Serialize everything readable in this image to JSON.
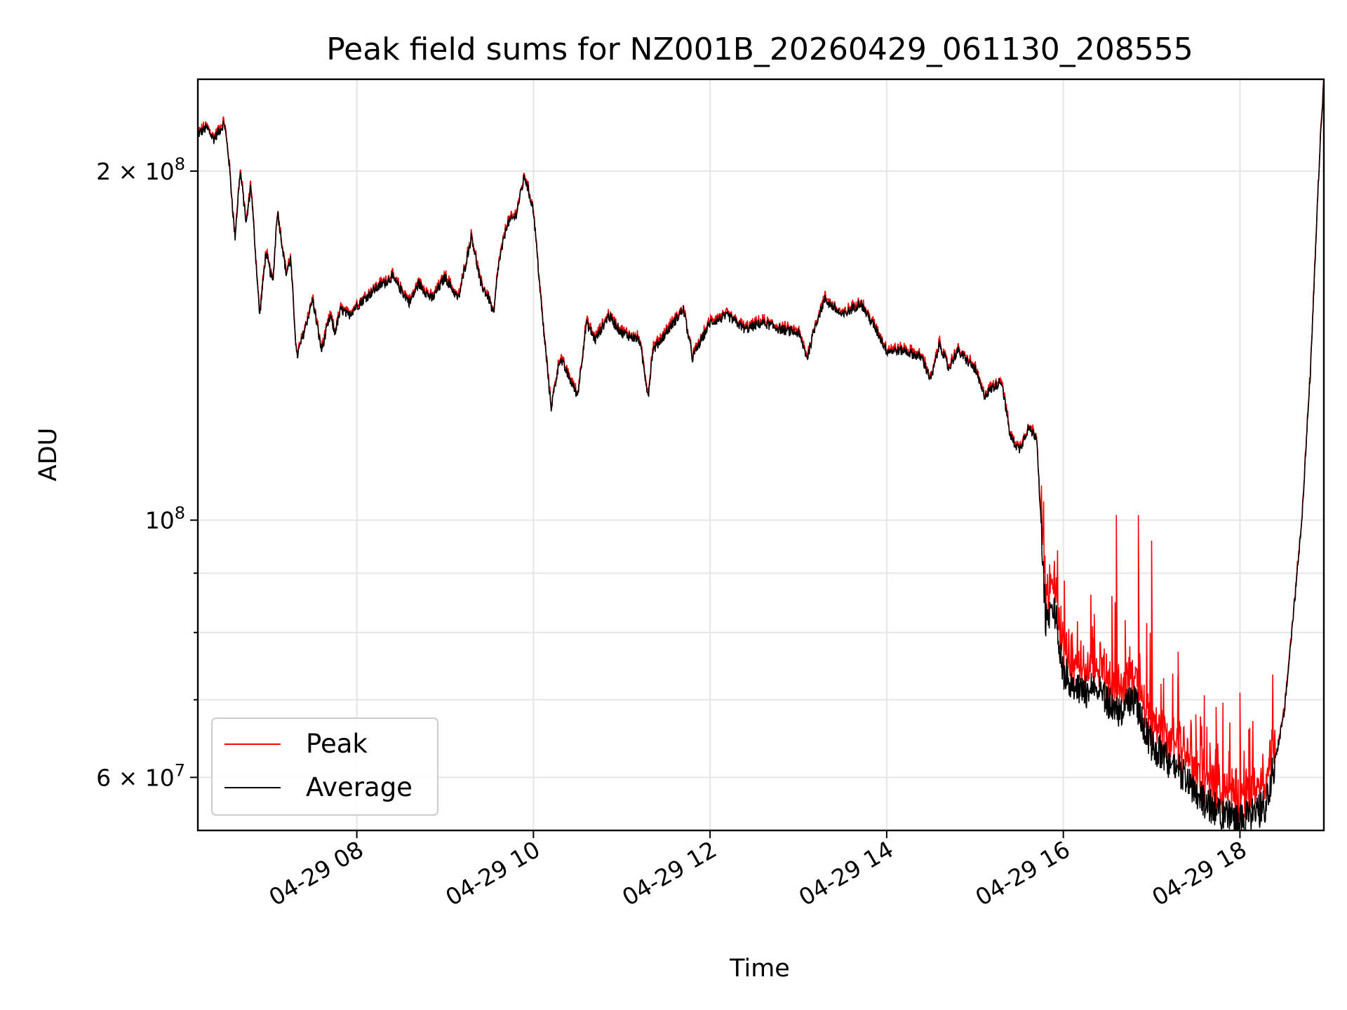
{
  "chart_data": {
    "type": "line",
    "title": "Peak field sums for NZ001B_20260429_061130_208555",
    "xlabel": "Time",
    "ylabel": "ADU",
    "yscale": "log",
    "xlim_hours": [
      6.2,
      18.95
    ],
    "ylim": [
      54000000,
      240000000
    ],
    "grid": true,
    "legend_location": "lower left",
    "x_ticks": [
      {
        "hour": 8,
        "label": "04-29 08"
      },
      {
        "hour": 10,
        "label": "04-29 10"
      },
      {
        "hour": 12,
        "label": "04-29 12"
      },
      {
        "hour": 14,
        "label": "04-29 14"
      },
      {
        "hour": 16,
        "label": "04-29 16"
      },
      {
        "hour": 18,
        "label": "04-29 18"
      }
    ],
    "y_major_ticks": [
      {
        "value": 200000000,
        "label": "2 × 10^8",
        "mantissa": "2 × 10",
        "exponent": "8"
      },
      {
        "value": 100000000,
        "label": "10^8",
        "mantissa": "10",
        "exponent": "8"
      },
      {
        "value": 60000000,
        "label": "6 × 10^7",
        "mantissa": "6 × 10",
        "exponent": "7"
      }
    ],
    "y_minor_ticks": [
      70000000,
      80000000,
      90000000
    ],
    "series": [
      {
        "name": "Peak",
        "color": "#ff0000",
        "spikes": [
          {
            "hour": 16.1,
            "value": 80000000
          },
          {
            "hour": 16.35,
            "value": 83000000
          },
          {
            "hour": 16.55,
            "value": 86000000
          },
          {
            "hour": 16.6,
            "value": 101000000
          },
          {
            "hour": 16.7,
            "value": 82000000
          },
          {
            "hour": 16.85,
            "value": 101000000
          },
          {
            "hour": 17.0,
            "value": 96000000
          },
          {
            "hour": 17.3,
            "value": 77000000
          },
          {
            "hour": 17.5,
            "value": 68000000
          },
          {
            "hour": 17.73,
            "value": 69000000
          },
          {
            "hour": 18.0,
            "value": 71000000
          },
          {
            "hour": 18.1,
            "value": 66000000
          }
        ]
      },
      {
        "name": "Average",
        "color": "#000000",
        "x_hours": [
          6.2,
          6.3,
          6.38,
          6.5,
          6.55,
          6.62,
          6.68,
          6.75,
          6.8,
          6.9,
          6.97,
          7.05,
          7.1,
          7.2,
          7.25,
          7.32,
          7.4,
          7.5,
          7.6,
          7.7,
          7.75,
          7.82,
          7.9,
          8.0,
          8.2,
          8.4,
          8.6,
          8.7,
          8.85,
          9.0,
          9.15,
          9.3,
          9.4,
          9.5,
          9.55,
          9.6,
          9.7,
          9.8,
          9.9,
          10.0,
          10.1,
          10.2,
          10.3,
          10.5,
          10.6,
          10.7,
          10.85,
          11.0,
          11.2,
          11.3,
          11.35,
          11.5,
          11.7,
          11.8,
          12.0,
          12.2,
          12.4,
          12.6,
          12.8,
          13.0,
          13.1,
          13.2,
          13.3,
          13.5,
          13.7,
          13.9,
          14.0,
          14.2,
          14.4,
          14.5,
          14.6,
          14.7,
          14.8,
          15.0,
          15.1,
          15.3,
          15.4,
          15.5,
          15.6,
          15.7,
          15.8,
          15.9,
          16.0,
          16.2,
          16.4,
          16.6,
          16.8,
          17.0,
          17.2,
          17.4,
          17.6,
          17.8,
          18.0,
          18.2,
          18.3,
          18.5,
          18.6,
          18.7,
          18.8,
          18.9,
          18.95
        ],
        "values": [
          215000000,
          218000000,
          213000000,
          220000000,
          205000000,
          175000000,
          200000000,
          180000000,
          195000000,
          150000000,
          170000000,
          160000000,
          185000000,
          163000000,
          168000000,
          138000000,
          145000000,
          155000000,
          140000000,
          150000000,
          145000000,
          152000000,
          150000000,
          153000000,
          158000000,
          162000000,
          154000000,
          160000000,
          155000000,
          162000000,
          155000000,
          176000000,
          160000000,
          155000000,
          150000000,
          165000000,
          180000000,
          183000000,
          198000000,
          185000000,
          150000000,
          125000000,
          138000000,
          128000000,
          148000000,
          143000000,
          150000000,
          145000000,
          143000000,
          128000000,
          140000000,
          145000000,
          152000000,
          138000000,
          148000000,
          150000000,
          146000000,
          148000000,
          146000000,
          145000000,
          138000000,
          148000000,
          155000000,
          150000000,
          154000000,
          145000000,
          140000000,
          140000000,
          138000000,
          132000000,
          142000000,
          135000000,
          140000000,
          135000000,
          128000000,
          132000000,
          118000000,
          115000000,
          120000000,
          118000000,
          82000000,
          84000000,
          74000000,
          71000000,
          72000000,
          68000000,
          70000000,
          64000000,
          62000000,
          60000000,
          57000000,
          56000000,
          55000000,
          56000000,
          57000000,
          68000000,
          82000000,
          100000000,
          135000000,
          205000000,
          240000000
        ]
      }
    ]
  }
}
